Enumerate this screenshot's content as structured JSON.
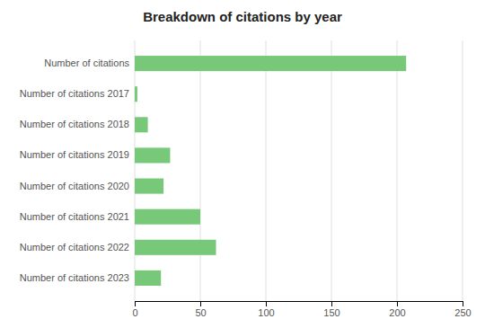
{
  "chart_data": {
    "type": "bar",
    "orientation": "horizontal",
    "title": "Breakdown of citations by year",
    "categories": [
      "Number of citations 2023",
      "Number of citations 2022",
      "Number of citations 2021",
      "Number of citations 2020",
      "Number of citations 2019",
      "Number of citations 2018",
      "Number of citations 2017",
      "Number of citations"
    ],
    "values": [
      20,
      62,
      50,
      22,
      27,
      10,
      2,
      207
    ],
    "color": "#77c878",
    "xlim": [
      0,
      250
    ],
    "xticks": [
      0,
      50,
      100,
      150,
      200,
      250
    ],
    "grid": true
  }
}
